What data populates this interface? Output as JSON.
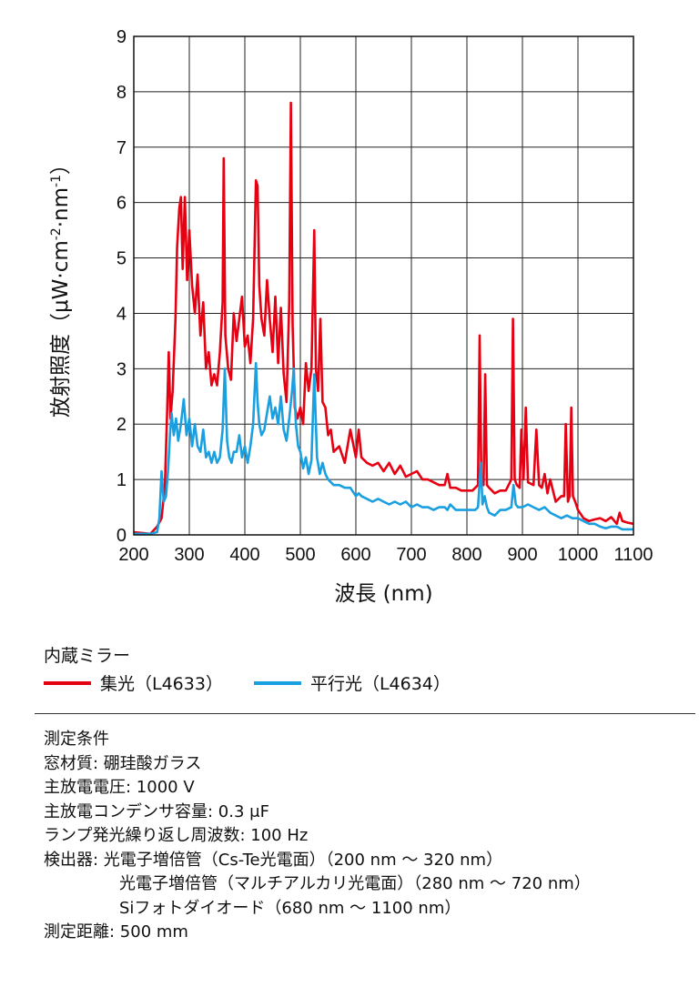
{
  "chart_data": {
    "type": "line",
    "xlabel": "波長 (nm)",
    "ylabel": "放射照度（μW·cm-2·nm-1）",
    "ylabel_main": "放射照度（μW·cm",
    "ylabel_sup1": "-2",
    "ylabel_mid": "·nm",
    "ylabel_sup2": "-1",
    "ylabel_end": "）",
    "xlim": [
      200,
      1100
    ],
    "ylim": [
      0,
      9
    ],
    "xticks": [
      200,
      300,
      400,
      500,
      600,
      700,
      800,
      900,
      1000,
      1100
    ],
    "yticks": [
      0,
      1,
      2,
      3,
      4,
      5,
      6,
      7,
      8,
      9
    ],
    "grid": true,
    "series": [
      {
        "name": "集光（L4633）",
        "color": "#e50012",
        "x": [
          200,
          230,
          242,
          250,
          256,
          260,
          263,
          266,
          270,
          275,
          278,
          282,
          285,
          288,
          292,
          296,
          300,
          305,
          310,
          315,
          320,
          325,
          330,
          335,
          340,
          345,
          350,
          355,
          360,
          362,
          365,
          370,
          375,
          380,
          385,
          390,
          395,
          400,
          405,
          410,
          415,
          420,
          423,
          426,
          430,
          435,
          440,
          445,
          450,
          455,
          460,
          465,
          470,
          475,
          480,
          483,
          486,
          490,
          495,
          500,
          505,
          510,
          515,
          520,
          525,
          528,
          532,
          536,
          540,
          545,
          550,
          555,
          560,
          570,
          580,
          590,
          600,
          605,
          610,
          620,
          630,
          640,
          650,
          660,
          670,
          680,
          690,
          700,
          710,
          720,
          730,
          740,
          750,
          760,
          765,
          770,
          780,
          790,
          800,
          810,
          815,
          820,
          823,
          826,
          830,
          833,
          836,
          840,
          850,
          860,
          870,
          875,
          880,
          883,
          886,
          890,
          895,
          898,
          902,
          906,
          910,
          920,
          925,
          930,
          935,
          940,
          945,
          950,
          960,
          970,
          975,
          978,
          982,
          985,
          988,
          991,
          995,
          1000,
          1010,
          1020,
          1030,
          1040,
          1050,
          1060,
          1070,
          1075,
          1080,
          1090,
          1100
        ],
        "values": [
          0.05,
          0.02,
          0.15,
          0.3,
          0.9,
          2.2,
          3.3,
          2.1,
          2.6,
          3.9,
          5.2,
          5.9,
          6.1,
          4.8,
          6.1,
          4.6,
          5.5,
          4.5,
          4.0,
          4.7,
          3.6,
          4.2,
          3.0,
          3.3,
          2.7,
          2.9,
          2.7,
          3.3,
          4.2,
          6.8,
          3.6,
          3.0,
          2.8,
          4.0,
          3.5,
          3.9,
          4.3,
          3.4,
          3.6,
          3.1,
          3.9,
          6.4,
          6.3,
          4.5,
          3.9,
          3.6,
          4.6,
          3.9,
          3.3,
          4.3,
          3.1,
          4.1,
          2.9,
          2.4,
          4.2,
          7.8,
          3.8,
          2.3,
          2.1,
          2.3,
          2.0,
          3.1,
          2.6,
          3.0,
          5.5,
          3.0,
          2.6,
          3.9,
          2.4,
          2.3,
          1.8,
          1.9,
          1.5,
          1.6,
          1.3,
          1.9,
          1.4,
          1.9,
          1.4,
          1.3,
          1.25,
          1.3,
          1.15,
          1.3,
          1.1,
          1.25,
          1.05,
          1.1,
          1.15,
          1.0,
          1.0,
          0.95,
          0.9,
          0.9,
          1.1,
          0.85,
          0.85,
          0.8,
          0.8,
          0.8,
          0.85,
          0.9,
          3.6,
          0.9,
          0.9,
          2.9,
          0.9,
          0.85,
          0.75,
          0.8,
          0.8,
          0.9,
          1.0,
          3.9,
          1.0,
          0.9,
          0.85,
          1.9,
          1.0,
          2.3,
          0.95,
          0.9,
          1.9,
          0.9,
          0.85,
          1.1,
          0.75,
          1.0,
          0.6,
          0.7,
          0.7,
          2.0,
          0.6,
          0.7,
          2.3,
          0.7,
          0.6,
          0.45,
          0.3,
          0.25,
          0.28,
          0.3,
          0.25,
          0.32,
          0.2,
          0.4,
          0.25,
          0.22,
          0.2
        ]
      },
      {
        "name": "平行光（L4634）",
        "color": "#1a9fe0",
        "x": [
          200,
          230,
          242,
          246,
          250,
          254,
          258,
          262,
          265,
          268,
          272,
          276,
          280,
          285,
          290,
          295,
          300,
          305,
          310,
          315,
          320,
          325,
          330,
          335,
          340,
          345,
          350,
          355,
          360,
          364,
          368,
          372,
          376,
          380,
          385,
          390,
          395,
          400,
          405,
          410,
          415,
          420,
          423,
          426,
          430,
          435,
          440,
          445,
          450,
          455,
          460,
          465,
          470,
          475,
          480,
          485,
          488,
          492,
          496,
          500,
          505,
          510,
          515,
          520,
          525,
          530,
          535,
          540,
          545,
          550,
          560,
          570,
          580,
          590,
          600,
          605,
          610,
          620,
          630,
          640,
          650,
          660,
          670,
          680,
          690,
          700,
          710,
          720,
          730,
          740,
          750,
          760,
          765,
          770,
          780,
          790,
          800,
          810,
          815,
          820,
          825,
          828,
          832,
          836,
          840,
          850,
          860,
          870,
          880,
          884,
          888,
          892,
          900,
          910,
          920,
          930,
          940,
          950,
          960,
          970,
          980,
          990,
          1000,
          1010,
          1020,
          1030,
          1040,
          1050,
          1060,
          1070,
          1080,
          1090,
          1100
        ],
        "values": [
          0.02,
          0.02,
          0.05,
          0.3,
          1.15,
          0.6,
          0.7,
          1.2,
          1.8,
          2.2,
          1.8,
          2.1,
          1.7,
          2.0,
          2.45,
          1.8,
          2.1,
          1.6,
          2.0,
          1.6,
          1.5,
          1.9,
          1.4,
          1.5,
          1.3,
          1.5,
          1.3,
          1.4,
          1.9,
          3.0,
          1.7,
          1.4,
          1.3,
          1.5,
          1.5,
          1.8,
          1.4,
          1.6,
          1.3,
          1.6,
          2.0,
          3.1,
          2.4,
          2.0,
          1.8,
          1.9,
          2.2,
          2.5,
          2.1,
          2.3,
          2.0,
          2.5,
          1.9,
          1.7,
          2.1,
          2.6,
          3.0,
          2.0,
          1.6,
          1.5,
          1.2,
          1.4,
          1.1,
          1.35,
          2.9,
          1.4,
          1.1,
          1.3,
          1.1,
          1.0,
          0.9,
          0.9,
          0.85,
          0.85,
          0.7,
          0.75,
          0.7,
          0.65,
          0.6,
          0.65,
          0.6,
          0.55,
          0.6,
          0.55,
          0.6,
          0.5,
          0.55,
          0.5,
          0.5,
          0.45,
          0.5,
          0.5,
          0.45,
          0.55,
          0.45,
          0.45,
          0.45,
          0.45,
          0.45,
          0.5,
          1.3,
          0.55,
          0.7,
          0.5,
          0.4,
          0.35,
          0.45,
          0.45,
          0.5,
          0.9,
          0.55,
          0.5,
          0.5,
          0.55,
          0.5,
          0.45,
          0.5,
          0.4,
          0.35,
          0.3,
          0.35,
          0.3,
          0.3,
          0.25,
          0.2,
          0.2,
          0.15,
          0.12,
          0.15,
          0.15,
          0.1,
          0.1,
          0.1
        ]
      }
    ]
  },
  "legend": {
    "title": "内蔵ミラー",
    "items": [
      {
        "label": "集光（L4633）",
        "color": "#e50012"
      },
      {
        "label": "平行光（L4634）",
        "color": "#1a9fe0"
      }
    ]
  },
  "conditions": {
    "heading": "測定条件",
    "window": "窓材質: 硼珪酸ガラス",
    "voltage": "主放電電圧: 1000 V",
    "capacitor": "主放電コンデンサ容量: 0.3 μF",
    "rate": "ランプ発光繰り返し周波数: 100 Hz",
    "detector1": "検出器: 光電子増倍管（Cs-Te光電面）（200 nm ～ 320 nm）",
    "detector2": "光電子増倍管（マルチアルカリ光電面）（280 nm ～ 720 nm）",
    "detector3": "Siフォトダイオード（680 nm ～ 1100 nm）",
    "distance": "測定距離: 500 mm"
  }
}
